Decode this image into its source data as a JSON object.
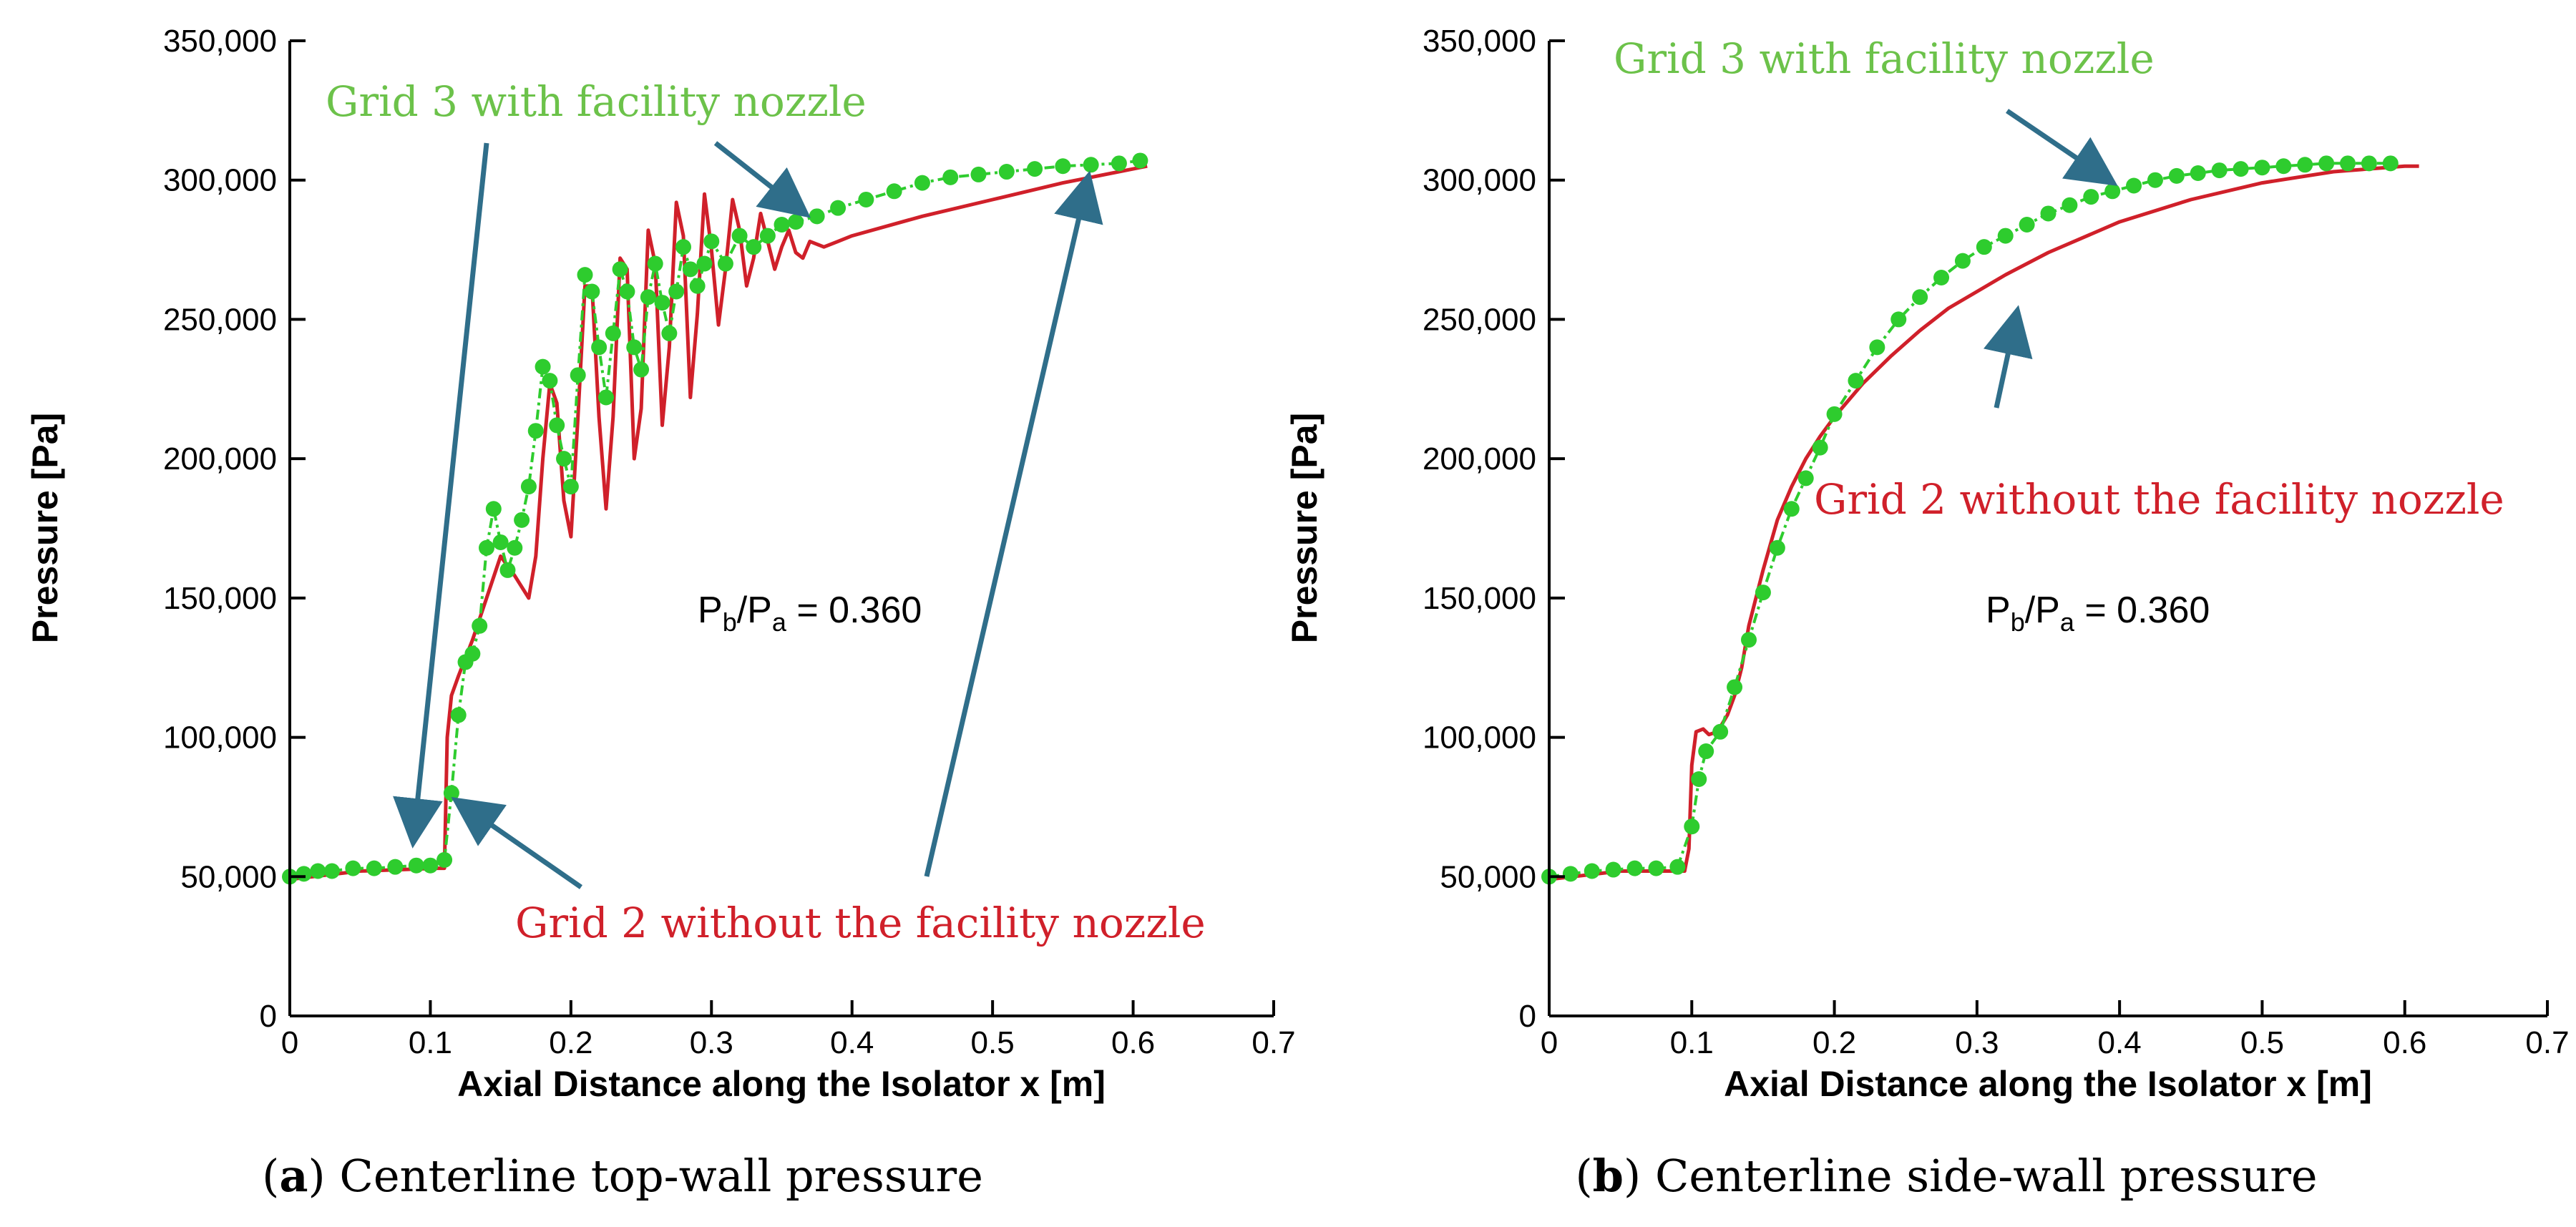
{
  "colors": {
    "grid2": "#d0202a",
    "grid3": "#2ecc2e",
    "grid3_label": "#6cc24a",
    "arrow": "#2f6e8a"
  },
  "chart_data": [
    {
      "type": "line",
      "panel_letter": "a",
      "caption": "Centerline top-wall pressure",
      "xlabel": "Axial Distance along the Isolator x [m]",
      "ylabel": "Pressure [Pa]",
      "xlim": [
        0,
        0.7
      ],
      "ylim": [
        0,
        350000
      ],
      "xticks": [
        0,
        0.1,
        0.2,
        0.3,
        0.4,
        0.5,
        0.6,
        0.7
      ],
      "xtick_labels": [
        "0",
        "0.1",
        "0.2",
        "0.3",
        "0.4",
        "0.5",
        "0.6",
        "0.7"
      ],
      "yticks": [
        0,
        50000,
        100000,
        150000,
        200000,
        250000,
        300000,
        350000
      ],
      "ytick_labels": [
        "0",
        "50,000",
        "100,000",
        "150,000",
        "200,000",
        "250,000",
        "300,000",
        "350,000"
      ],
      "grid": false,
      "annotations": {
        "grid3": "Grid 3 with facility nozzle",
        "grid2": "Grid 2 without the facility nozzle",
        "ratio_main": "P",
        "ratio_sub1": "b",
        "ratio_slash": "/P",
        "ratio_sub2": "a",
        "ratio_value": " = 0.360"
      },
      "series": [
        {
          "name": "Grid 2 without the facility nozzle",
          "style": "solid",
          "x": [
            0.0,
            0.05,
            0.105,
            0.11,
            0.112,
            0.115,
            0.12,
            0.13,
            0.14,
            0.15,
            0.16,
            0.17,
            0.175,
            0.18,
            0.185,
            0.19,
            0.195,
            0.2,
            0.205,
            0.21,
            0.215,
            0.22,
            0.225,
            0.23,
            0.235,
            0.24,
            0.245,
            0.25,
            0.255,
            0.26,
            0.265,
            0.27,
            0.275,
            0.28,
            0.285,
            0.29,
            0.295,
            0.3,
            0.305,
            0.31,
            0.315,
            0.32,
            0.325,
            0.33,
            0.335,
            0.34,
            0.345,
            0.35,
            0.355,
            0.36,
            0.365,
            0.37,
            0.375,
            0.38,
            0.39,
            0.4,
            0.45,
            0.5,
            0.55,
            0.6,
            0.61
          ],
          "y": [
            49000,
            52000,
            53000,
            53000,
            100000,
            115000,
            122000,
            135000,
            150000,
            165000,
            158000,
            150000,
            165000,
            200000,
            227000,
            220000,
            185000,
            172000,
            215000,
            262000,
            262000,
            215000,
            182000,
            215000,
            272000,
            268000,
            200000,
            218000,
            282000,
            270000,
            212000,
            240000,
            292000,
            280000,
            222000,
            252000,
            295000,
            275000,
            248000,
            268000,
            293000,
            282000,
            262000,
            272000,
            288000,
            278000,
            268000,
            276000,
            282000,
            274000,
            272000,
            278000,
            277000,
            276000,
            278000,
            280000,
            287000,
            293000,
            299000,
            304000,
            305000
          ]
        },
        {
          "name": "Grid 3 with facility nozzle",
          "style": "dash-dot-markers",
          "x": [
            0.0,
            0.01,
            0.02,
            0.03,
            0.045,
            0.06,
            0.075,
            0.09,
            0.1,
            0.11,
            0.115,
            0.12,
            0.125,
            0.13,
            0.135,
            0.14,
            0.145,
            0.15,
            0.155,
            0.16,
            0.165,
            0.17,
            0.175,
            0.18,
            0.185,
            0.19,
            0.195,
            0.2,
            0.205,
            0.21,
            0.215,
            0.22,
            0.225,
            0.23,
            0.235,
            0.24,
            0.245,
            0.25,
            0.255,
            0.26,
            0.265,
            0.27,
            0.275,
            0.28,
            0.285,
            0.29,
            0.295,
            0.3,
            0.31,
            0.32,
            0.33,
            0.34,
            0.35,
            0.36,
            0.375,
            0.39,
            0.41,
            0.43,
            0.45,
            0.47,
            0.49,
            0.51,
            0.53,
            0.55,
            0.57,
            0.59,
            0.605
          ],
          "y": [
            50000,
            51000,
            52000,
            52000,
            53000,
            53000,
            53500,
            54000,
            54000,
            56000,
            80000,
            108000,
            127000,
            130000,
            140000,
            168000,
            182000,
            170000,
            160000,
            168000,
            178000,
            190000,
            210000,
            233000,
            228000,
            212000,
            200000,
            190000,
            230000,
            266000,
            260000,
            240000,
            222000,
            245000,
            268000,
            260000,
            240000,
            232000,
            258000,
            270000,
            256000,
            245000,
            260000,
            276000,
            268000,
            262000,
            270000,
            278000,
            270000,
            280000,
            276000,
            280000,
            284000,
            285000,
            287000,
            290000,
            293000,
            296000,
            299000,
            301000,
            302000,
            303000,
            304000,
            305000,
            305500,
            306000,
            307000
          ]
        }
      ]
    },
    {
      "type": "line",
      "panel_letter": "b",
      "caption": "Centerline side-wall pressure",
      "xlabel": "Axial Distance along the Isolator x [m]",
      "ylabel": "Pressure [Pa]",
      "xlim": [
        0,
        0.7
      ],
      "ylim": [
        0,
        350000
      ],
      "xticks": [
        0,
        0.1,
        0.2,
        0.3,
        0.4,
        0.5,
        0.6,
        0.7
      ],
      "xtick_labels": [
        "0",
        "0.1",
        "0.2",
        "0.3",
        "0.4",
        "0.5",
        "0.6",
        "0.7"
      ],
      "yticks": [
        0,
        50000,
        100000,
        150000,
        200000,
        250000,
        300000,
        350000
      ],
      "ytick_labels": [
        "0",
        "50,000",
        "100,000",
        "150,000",
        "200,000",
        "250,000",
        "300,000",
        "350,000"
      ],
      "grid": false,
      "annotations": {
        "grid3": "Grid 3 with facility nozzle",
        "grid2": "Grid 2 without the facility nozzle",
        "ratio_main": "P",
        "ratio_sub1": "b",
        "ratio_slash": "/P",
        "ratio_sub2": "a",
        "ratio_value": " = 0.360"
      },
      "series": [
        {
          "name": "Grid 2 without the facility nozzle",
          "style": "solid",
          "x": [
            0.0,
            0.05,
            0.095,
            0.098,
            0.1,
            0.103,
            0.108,
            0.112,
            0.118,
            0.125,
            0.13,
            0.135,
            0.14,
            0.15,
            0.16,
            0.17,
            0.18,
            0.19,
            0.2,
            0.22,
            0.24,
            0.26,
            0.28,
            0.3,
            0.32,
            0.35,
            0.4,
            0.45,
            0.5,
            0.55,
            0.6,
            0.61
          ],
          "y": [
            49000,
            52000,
            52000,
            60000,
            90000,
            102000,
            103000,
            101000,
            102000,
            108000,
            115000,
            125000,
            140000,
            160000,
            178000,
            190000,
            200000,
            208000,
            215000,
            227000,
            237000,
            246000,
            254000,
            260000,
            266000,
            274000,
            285000,
            293000,
            299000,
            303000,
            305000,
            305000
          ]
        },
        {
          "name": "Grid 3 with facility nozzle",
          "style": "dash-dot-markers",
          "x": [
            0.0,
            0.015,
            0.03,
            0.045,
            0.06,
            0.075,
            0.09,
            0.1,
            0.105,
            0.11,
            0.12,
            0.13,
            0.14,
            0.15,
            0.16,
            0.17,
            0.18,
            0.19,
            0.2,
            0.215,
            0.23,
            0.245,
            0.26,
            0.275,
            0.29,
            0.305,
            0.32,
            0.335,
            0.35,
            0.365,
            0.38,
            0.395,
            0.41,
            0.425,
            0.44,
            0.455,
            0.47,
            0.485,
            0.5,
            0.515,
            0.53,
            0.545,
            0.56,
            0.575,
            0.59
          ],
          "y": [
            50000,
            51000,
            52000,
            52500,
            53000,
            53000,
            53500,
            68000,
            85000,
            95000,
            102000,
            118000,
            135000,
            152000,
            168000,
            182000,
            193000,
            204000,
            216000,
            228000,
            240000,
            250000,
            258000,
            265000,
            271000,
            276000,
            280000,
            284000,
            288000,
            291000,
            294000,
            296000,
            298000,
            300000,
            301500,
            302500,
            303500,
            304000,
            304500,
            305000,
            305500,
            306000,
            306000,
            306000,
            306000
          ]
        }
      ]
    }
  ]
}
